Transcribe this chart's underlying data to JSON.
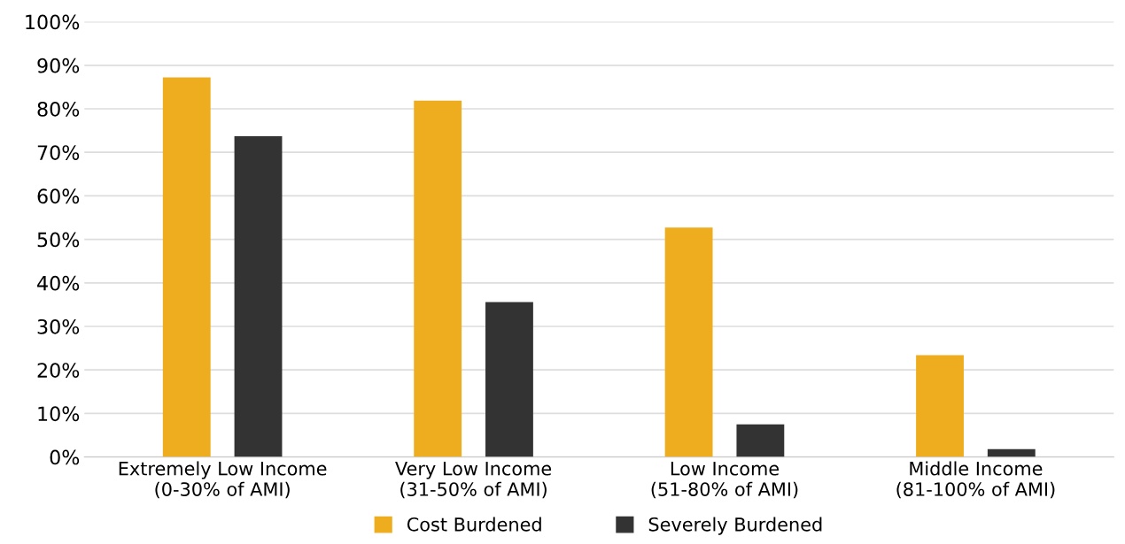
{
  "chart_data": {
    "type": "bar",
    "categories": [
      "Extremely Low Income\n(0-30% of AMI)",
      "Very Low Income\n(31-50% of AMI)",
      "Low Income\n(51-80% of AMI)",
      "Middle Income\n(81-100% of AMI)"
    ],
    "series": [
      {
        "name": "Cost Burdened",
        "color": "#eead1e",
        "values": [
          87.2,
          81.9,
          52.7,
          23.4
        ]
      },
      {
        "name": "Severely Burdened",
        "color": "#333333",
        "values": [
          73.7,
          35.6,
          7.5,
          1.8
        ]
      }
    ],
    "ylim": [
      0,
      100
    ],
    "yticks": [
      {
        "value": 0,
        "label": "0%"
      },
      {
        "value": 10,
        "label": "10%"
      },
      {
        "value": 20,
        "label": "20%"
      },
      {
        "value": 30,
        "label": "30%"
      },
      {
        "value": 40,
        "label": "40%"
      },
      {
        "value": 50,
        "label": "50%"
      },
      {
        "value": 60,
        "label": "60%"
      },
      {
        "value": 70,
        "label": "70%"
      },
      {
        "value": 80,
        "label": "80%"
      },
      {
        "value": 90,
        "label": "90%"
      },
      {
        "value": 100,
        "label": "100%"
      }
    ],
    "grid": "y",
    "legend": "bottom"
  }
}
